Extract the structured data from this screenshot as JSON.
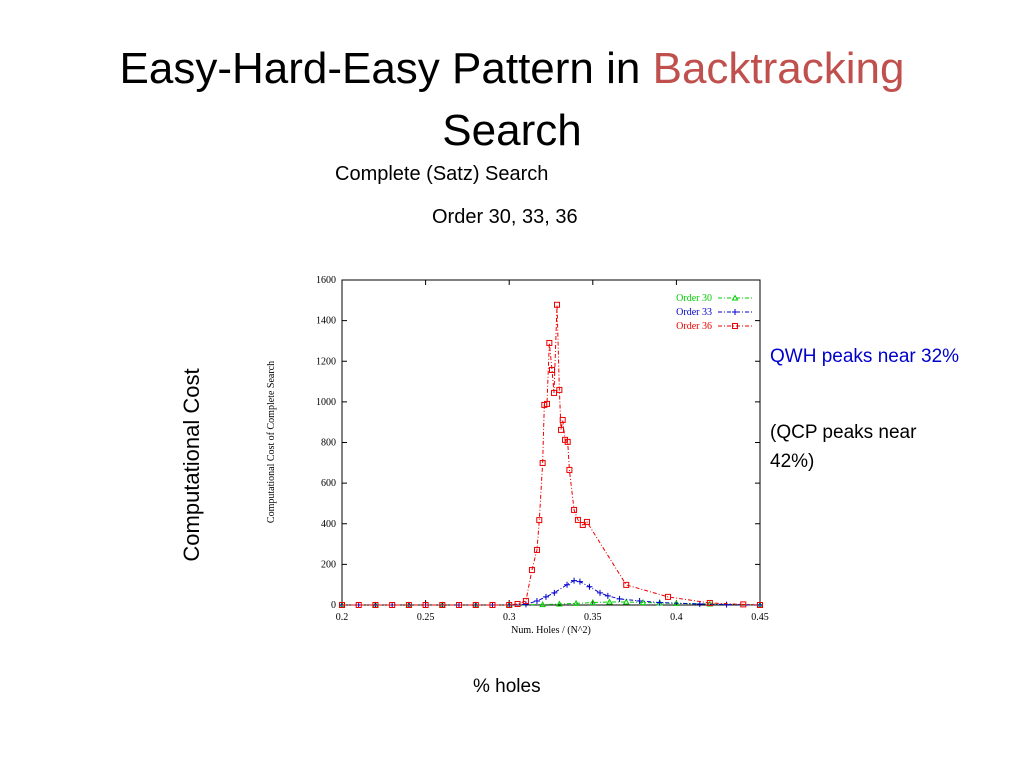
{
  "slide": {
    "title_line1": "Easy-Hard-Easy Pattern in",
    "title_highlight": "Backtracking",
    "title_line2": "Search",
    "subtitle": "Complete (Satz) Search",
    "orders": "Order 30, 33, 36",
    "side_label": "Computational Cost",
    "bottom_label": "% holes",
    "note_qwh": "QWH peaks near 32%",
    "note_qcp": "(QCP peaks near 42%)"
  },
  "chart_data": {
    "type": "line",
    "x_label": "Num. Holes / (N^2)",
    "y_label": "Computational Cost of Complete Search",
    "xlim": [
      0.2,
      0.45
    ],
    "ylim": [
      0,
      1600
    ],
    "xticks": [
      0.2,
      0.25,
      0.3,
      0.35,
      0.4,
      0.45
    ],
    "yticks": [
      0,
      200,
      400,
      600,
      800,
      1000,
      1200,
      1400,
      1600
    ],
    "legend": "upper right",
    "series": [
      {
        "name": "Order 30",
        "color": "#00cc00",
        "marker": "triangle",
        "x": [
          0.2,
          0.22,
          0.24,
          0.26,
          0.28,
          0.3,
          0.32,
          0.33,
          0.34,
          0.35,
          0.36,
          0.37,
          0.38,
          0.39,
          0.4,
          0.42,
          0.45
        ],
        "values": [
          0,
          0,
          0,
          0,
          0,
          0,
          2,
          5,
          8,
          12,
          15,
          15,
          12,
          10,
          8,
          5,
          0
        ]
      },
      {
        "name": "Order 33",
        "color": "#0000cc",
        "marker": "plus",
        "x": [
          0.2,
          0.21,
          0.22,
          0.23,
          0.24,
          0.25,
          0.26,
          0.27,
          0.28,
          0.29,
          0.3,
          0.31,
          0.3166,
          0.322,
          0.327,
          0.3346,
          0.3388,
          0.3423,
          0.348,
          0.3543,
          0.359,
          0.366,
          0.378,
          0.39,
          0.414,
          0.43,
          0.45
        ],
        "values": [
          0,
          0,
          0,
          0,
          0,
          0,
          0,
          0,
          0,
          0,
          0,
          3,
          20,
          40,
          60,
          100,
          120,
          115,
          90,
          60,
          45,
          30,
          20,
          12,
          5,
          2,
          0
        ]
      },
      {
        "name": "Order 36",
        "color": "#ee0000",
        "marker": "square",
        "x": [
          0.2,
          0.21,
          0.22,
          0.23,
          0.24,
          0.25,
          0.26,
          0.27,
          0.28,
          0.29,
          0.3,
          0.305,
          0.31,
          0.3136,
          0.3166,
          0.318,
          0.32,
          0.321,
          0.3226,
          0.324,
          0.3256,
          0.3268,
          0.3286,
          0.33,
          0.331,
          0.332,
          0.3334,
          0.335,
          0.336,
          0.3388,
          0.3411,
          0.344,
          0.3465,
          0.37,
          0.395,
          0.42,
          0.44,
          0.45
        ],
        "values": [
          0,
          0,
          0,
          0,
          0,
          0,
          0,
          0,
          0,
          0,
          0,
          5,
          20,
          172,
          271,
          418,
          699,
          985,
          990,
          1290,
          1157,
          1044,
          1478,
          1059,
          862,
          911,
          813,
          803,
          665,
          468,
          419,
          394,
          409,
          99,
          40,
          10,
          3,
          0
        ]
      }
    ]
  }
}
